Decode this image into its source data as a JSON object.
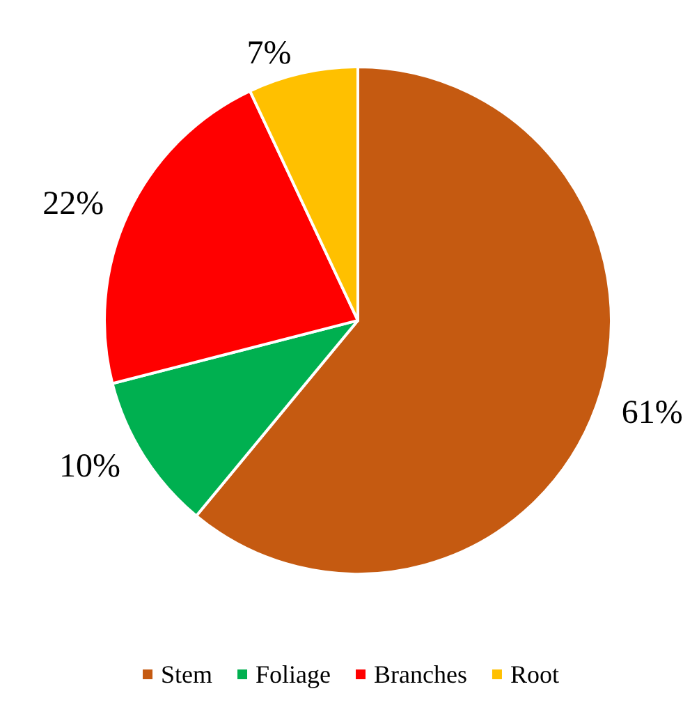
{
  "chart_data": {
    "type": "pie",
    "categories": [
      "Stem",
      "Foliage",
      "Branches",
      "Root"
    ],
    "values": [
      61,
      10,
      22,
      7
    ],
    "value_labels": [
      "61%",
      "10%",
      "22%",
      "7%"
    ],
    "colors": [
      "#c55a11",
      "#00b050",
      "#ff0000",
      "#ffc000"
    ],
    "legend": "bottom"
  }
}
